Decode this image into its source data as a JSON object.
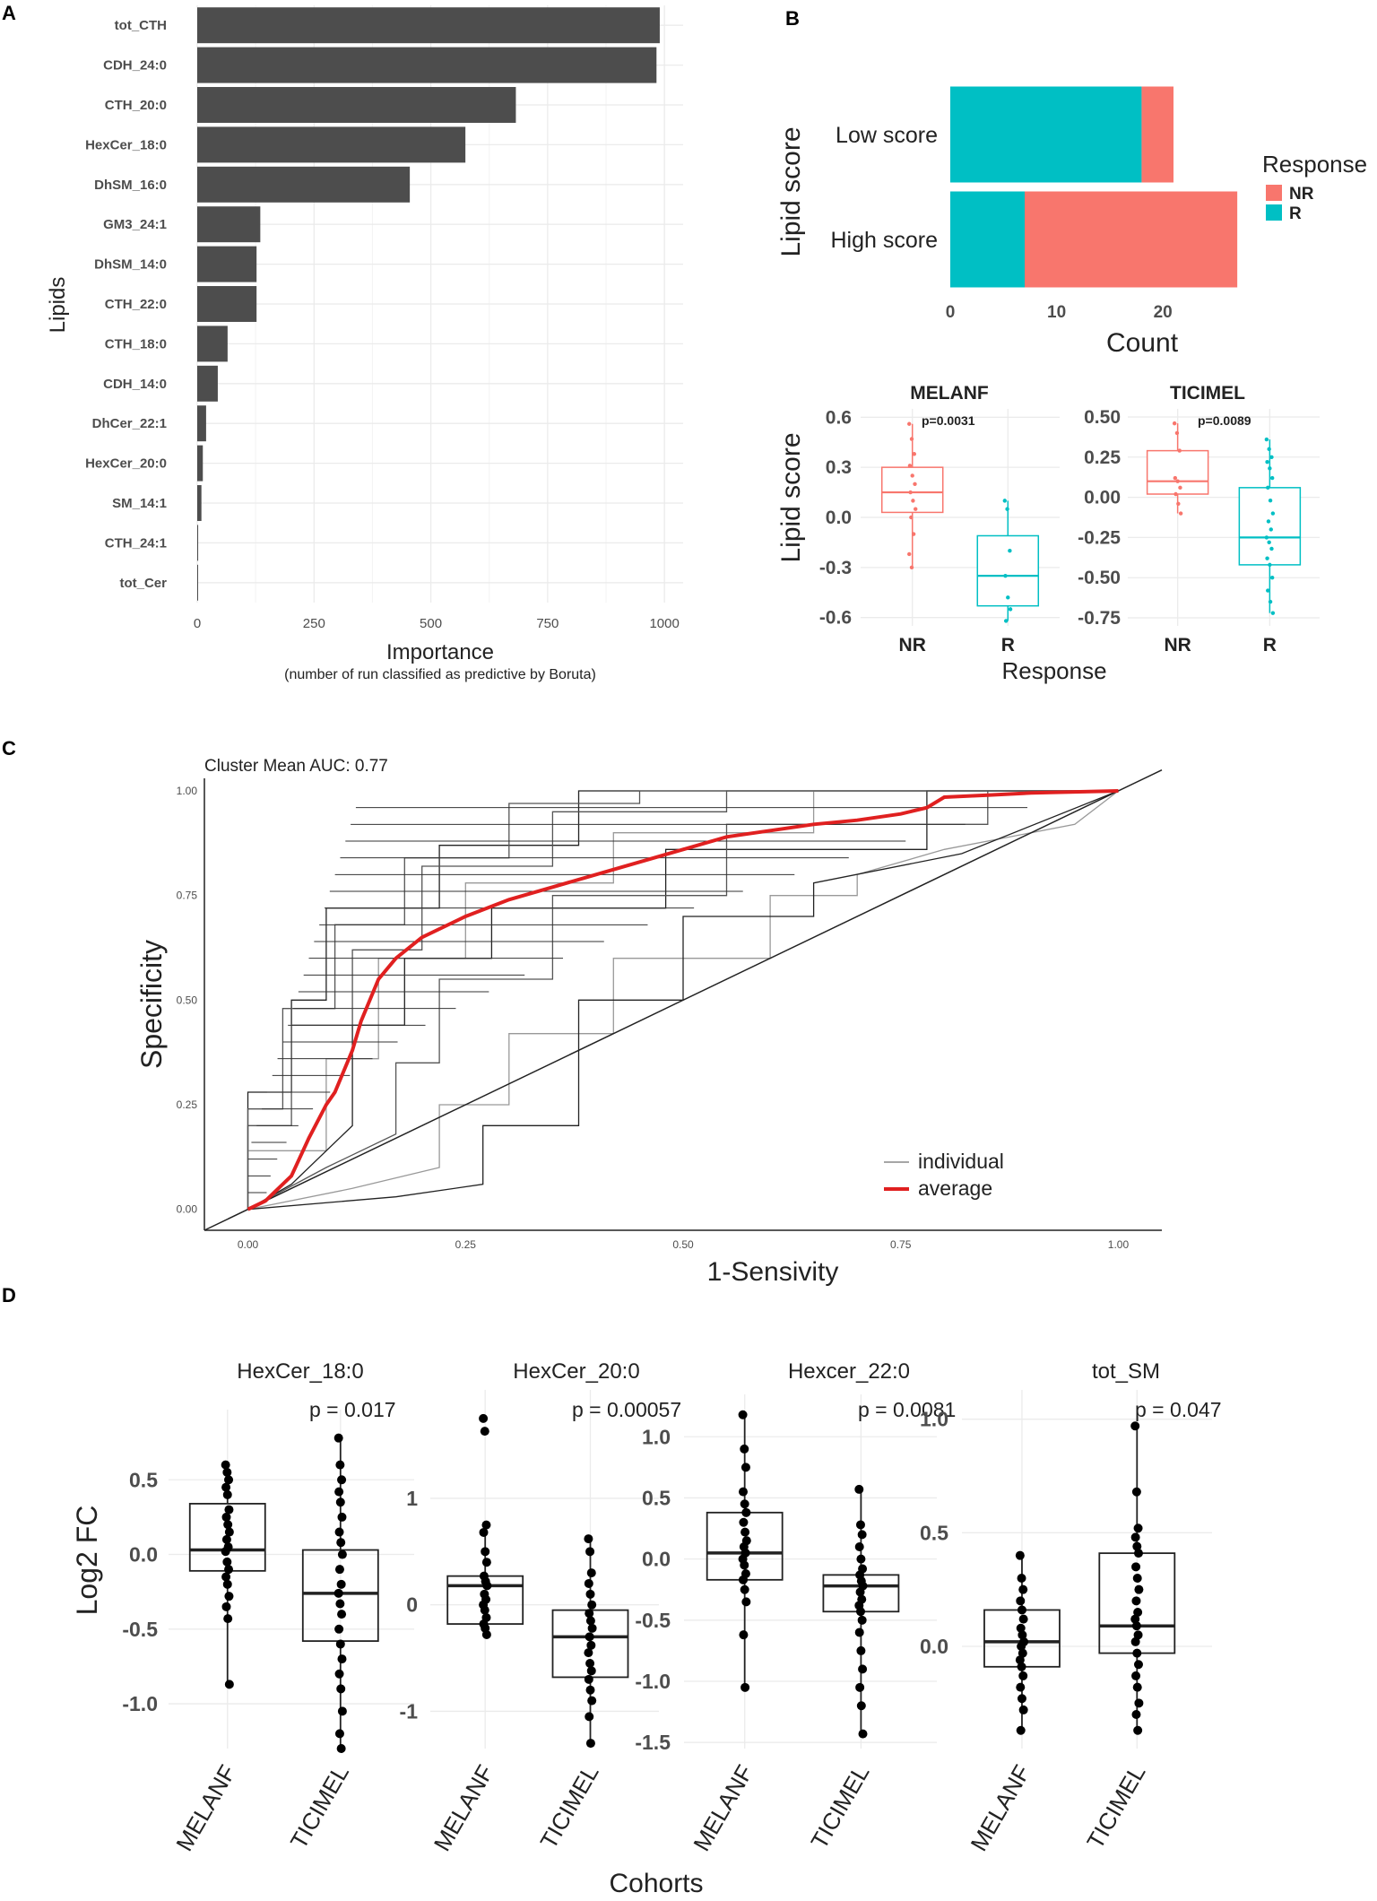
{
  "colors": {
    "bar": "#4d4d4d",
    "NR": "#f8766d",
    "R": "#00bfc4",
    "avg": "#e02020",
    "grid": "#ebebeb",
    "indiv": "#888888"
  },
  "chart_data": [
    {
      "panel": "A",
      "type": "bar",
      "orientation": "horizontal",
      "categories": [
        "tot_CTH",
        "CDH_24:0",
        "CTH_20:0",
        "HexCer_18:0",
        "DhSM_16:0",
        "GM3_24:1",
        "DhSM_14:0",
        "CTH_22:0",
        "CTH_18:0",
        "CDH_14:0",
        "DhCer_22:1",
        "HexCer_20:0",
        "SM_14:1",
        "CTH_24:1",
        "tot_Cer"
      ],
      "values": [
        990,
        983,
        682,
        574,
        455,
        135,
        127,
        127,
        65,
        44,
        19,
        12,
        9,
        2,
        1
      ],
      "xlabel": "Importance",
      "xlabel_sub": "(number of run classified as predictive by Boruta)",
      "ylabel": "Lipids",
      "xlim": [
        0,
        1040
      ],
      "xticks": [
        "0",
        "250",
        "500",
        "750",
        "1000"
      ],
      "xtick_values": [
        0,
        250,
        500,
        750,
        1000
      ]
    },
    {
      "panel": "B",
      "type": "bar",
      "orientation": "horizontal",
      "stacked": true,
      "categories": [
        "Low score",
        "High score"
      ],
      "series": [
        {
          "name": "R",
          "values": [
            18,
            7
          ]
        },
        {
          "name": "NR",
          "values": [
            3,
            20
          ]
        }
      ],
      "xlabel": "Count",
      "ylabel": "Lipid   score",
      "xlim": [
        0,
        28
      ],
      "xticks": [
        "0",
        "10",
        "20"
      ],
      "xtick_values": [
        0,
        10,
        20
      ],
      "legend_title": "Response",
      "legend": [
        "NR",
        "R"
      ],
      "legend_position": "right"
    },
    {
      "panel": "B-box",
      "type": "box",
      "ylabel": "Lipid   score",
      "xlabel": "Response",
      "facets": [
        {
          "title": "MELANF",
          "pvalue": "p=0.0031",
          "ylim": [
            -0.65,
            0.65
          ],
          "yticks": [
            "0.6",
            "0.3",
            "0.0",
            "-0.3",
            "-0.6"
          ],
          "ytick_values": [
            0.6,
            0.3,
            0,
            -0.3,
            -0.6
          ],
          "groups": [
            {
              "name": "NR",
              "q1": 0.03,
              "median": 0.15,
              "q3": 0.3,
              "lo": -0.3,
              "hi": 0.56,
              "points": [
                0.56,
                0.47,
                0.38,
                0.31,
                0.25,
                0.2,
                0.15,
                0.1,
                0.05,
                0.0,
                -0.1,
                -0.22,
                -0.3
              ]
            },
            {
              "name": "R",
              "q1": -0.53,
              "median": -0.35,
              "q3": -0.11,
              "lo": -0.62,
              "hi": 0.1,
              "points": [
                0.1,
                0.05,
                -0.2,
                -0.35,
                -0.48,
                -0.55,
                -0.62
              ]
            }
          ]
        },
        {
          "title": "TICIMEL",
          "pvalue": "p=0.0089",
          "ylim": [
            -0.8,
            0.55
          ],
          "yticks": [
            "0.50",
            "0.25",
            "0.00",
            "-0.25",
            "-0.50",
            "-0.75"
          ],
          "ytick_values": [
            0.5,
            0.25,
            0,
            -0.25,
            -0.5,
            -0.75
          ],
          "groups": [
            {
              "name": "NR",
              "q1": 0.02,
              "median": 0.1,
              "q3": 0.29,
              "lo": -0.1,
              "hi": 0.46,
              "points": [
                0.46,
                0.4,
                0.29,
                0.12,
                0.1,
                0.06,
                0.02,
                -0.04,
                -0.1
              ]
            },
            {
              "name": "R",
              "q1": -0.42,
              "median": -0.25,
              "q3": 0.06,
              "lo": -0.72,
              "hi": 0.36,
              "points": [
                0.36,
                0.3,
                0.25,
                0.22,
                0.18,
                0.12,
                0.06,
                -0.02,
                -0.1,
                -0.15,
                -0.2,
                -0.25,
                -0.28,
                -0.32,
                -0.38,
                -0.42,
                -0.5,
                -0.58,
                -0.65,
                -0.72
              ]
            }
          ]
        }
      ]
    },
    {
      "panel": "C",
      "type": "line",
      "title": "Cluster Mean AUC: 0.77",
      "xlabel": "1-Sensivity",
      "ylabel": "Specificity",
      "xlim": [
        -0.05,
        1.05
      ],
      "ylim": [
        -0.05,
        1.03
      ],
      "xticks": [
        "0.00",
        "0.25",
        "0.50",
        "0.75",
        "1.00"
      ],
      "xtick_values": [
        0,
        0.25,
        0.5,
        0.75,
        1
      ],
      "yticks": [
        "0.00",
        "0.25",
        "0.50",
        "0.75",
        "1.00"
      ],
      "ytick_values": [
        0,
        0.25,
        0.5,
        0.75,
        1
      ],
      "series": [
        {
          "name": "average",
          "x": [
            0,
            0.02,
            0.05,
            0.07,
            0.09,
            0.1,
            0.12,
            0.13,
            0.15,
            0.17,
            0.2,
            0.25,
            0.3,
            0.35,
            0.4,
            0.45,
            0.5,
            0.55,
            0.6,
            0.65,
            0.7,
            0.75,
            0.78,
            0.8,
            0.85,
            0.9,
            1
          ],
          "y": [
            0,
            0.02,
            0.08,
            0.17,
            0.25,
            0.28,
            0.38,
            0.45,
            0.55,
            0.6,
            0.65,
            0.7,
            0.74,
            0.77,
            0.8,
            0.83,
            0.86,
            0.89,
            0.905,
            0.92,
            0.93,
            0.945,
            0.96,
            0.985,
            0.99,
            0.995,
            1
          ]
        },
        {
          "name": "chance",
          "x": [
            -0.05,
            1.05
          ],
          "y": [
            -0.05,
            1.05
          ]
        }
      ],
      "legend": [
        "individual",
        "average"
      ],
      "legend_position": "bottom-right"
    },
    {
      "panel": "D",
      "type": "box",
      "xlabel": "Cohorts",
      "ylabel": "Log2 FC",
      "categories": [
        "MELANF",
        "TICIMEL"
      ],
      "facets": [
        {
          "title": "HexCer_18:0",
          "pvalue": "p = 0.017",
          "ylim": [
            -1.3,
            0.85
          ],
          "yticks": [
            "0.5",
            "0.0",
            "-0.5",
            "-1.0"
          ],
          "ytick_values": [
            0.5,
            0,
            -0.5,
            -1.0
          ],
          "groups": [
            {
              "name": "MELANF",
              "q1": -0.11,
              "median": 0.03,
              "q3": 0.34,
              "lo": -0.87,
              "hi": 0.6,
              "points": [
                0.6,
                0.55,
                0.5,
                0.45,
                0.4,
                0.3,
                0.25,
                0.2,
                0.15,
                0.1,
                0.05,
                0.02,
                -0.05,
                -0.1,
                -0.15,
                -0.2,
                -0.28,
                -0.35,
                -0.43,
                -0.87
              ]
            },
            {
              "name": "TICIMEL",
              "q1": -0.58,
              "median": -0.26,
              "q3": 0.03,
              "lo": -1.3,
              "hi": 0.78,
              "points": [
                0.78,
                0.6,
                0.5,
                0.42,
                0.35,
                0.25,
                0.15,
                0.08,
                0.0,
                -0.1,
                -0.2,
                -0.26,
                -0.33,
                -0.4,
                -0.5,
                -0.6,
                -0.7,
                -0.8,
                -0.9,
                -1.05,
                -1.2,
                -1.3
              ]
            }
          ]
        },
        {
          "title": "HexCer_20:0",
          "pvalue": "p = 0.00057",
          "ylim": [
            -1.35,
            1.85
          ],
          "yticks": [
            "1",
            "0",
            "-1"
          ],
          "ytick_values": [
            1,
            0,
            -1
          ],
          "groups": [
            {
              "name": "MELANF",
              "q1": -0.18,
              "median": 0.18,
              "q3": 0.27,
              "lo": -0.28,
              "hi": 0.75,
              "points": [
                1.75,
                1.63,
                0.75,
                0.68,
                0.5,
                0.4,
                0.27,
                0.22,
                0.18,
                0.1,
                0.05,
                0.0,
                -0.05,
                -0.12,
                -0.18,
                -0.22,
                -0.28
              ]
            },
            {
              "name": "TICIMEL",
              "q1": -0.68,
              "median": -0.3,
              "q3": -0.05,
              "lo": -1.3,
              "hi": 0.62,
              "points": [
                0.62,
                0.5,
                0.3,
                0.2,
                0.1,
                0.0,
                -0.08,
                -0.15,
                -0.22,
                -0.3,
                -0.38,
                -0.45,
                -0.55,
                -0.62,
                -0.7,
                -0.8,
                -0.9,
                -1.05,
                -1.3
              ]
            }
          ]
        },
        {
          "title": "Hexcer_22:0",
          "pvalue": "p = 0.0081",
          "ylim": [
            -1.55,
            1.2
          ],
          "yticks": [
            "1.0",
            "0.5",
            "0.0",
            "-0.5",
            "-1.0",
            "-1.5"
          ],
          "ytick_values": [
            1,
            0.5,
            0,
            -0.5,
            -1,
            -1.5
          ],
          "groups": [
            {
              "name": "MELANF",
              "q1": -0.17,
              "median": 0.05,
              "q3": 0.38,
              "lo": -1.05,
              "hi": 1.18,
              "points": [
                1.18,
                0.9,
                0.75,
                0.55,
                0.45,
                0.38,
                0.3,
                0.22,
                0.15,
                0.1,
                0.05,
                0.0,
                -0.05,
                -0.12,
                -0.17,
                -0.25,
                -0.35,
                -0.62,
                -1.05
              ]
            },
            {
              "name": "TICIMEL",
              "q1": -0.43,
              "median": -0.22,
              "q3": -0.13,
              "lo": -1.43,
              "hi": 0.57,
              "points": [
                0.57,
                0.28,
                0.2,
                0.1,
                0.0,
                -0.08,
                -0.13,
                -0.18,
                -0.22,
                -0.27,
                -0.33,
                -0.38,
                -0.43,
                -0.5,
                -0.6,
                -0.75,
                -0.9,
                -1.05,
                -1.2,
                -1.43
              ]
            }
          ]
        },
        {
          "title": "tot_SM",
          "pvalue": "p = 0.047",
          "ylim": [
            -0.45,
            1.05
          ],
          "yticks": [
            "1.0",
            "0.5",
            "0.0"
          ],
          "ytick_values": [
            1,
            0.5,
            0
          ],
          "groups": [
            {
              "name": "MELANF",
              "q1": -0.09,
              "median": 0.02,
              "q3": 0.16,
              "lo": -0.37,
              "hi": 0.4,
              "points": [
                0.4,
                0.3,
                0.25,
                0.2,
                0.16,
                0.12,
                0.08,
                0.05,
                0.02,
                0.0,
                -0.03,
                -0.06,
                -0.09,
                -0.13,
                -0.18,
                -0.23,
                -0.28,
                -0.37
              ]
            },
            {
              "name": "TICIMEL",
              "q1": -0.03,
              "median": 0.09,
              "q3": 0.41,
              "lo": -0.37,
              "hi": 0.97,
              "points": [
                0.97,
                0.68,
                0.52,
                0.48,
                0.44,
                0.41,
                0.35,
                0.3,
                0.25,
                0.2,
                0.15,
                0.12,
                0.09,
                0.05,
                0.02,
                -0.03,
                -0.08,
                -0.13,
                -0.18,
                -0.25,
                -0.3,
                -0.37
              ]
            }
          ]
        }
      ]
    }
  ],
  "panel_labels": {
    "A": "A",
    "B": "B",
    "C": "C",
    "D": "D"
  }
}
